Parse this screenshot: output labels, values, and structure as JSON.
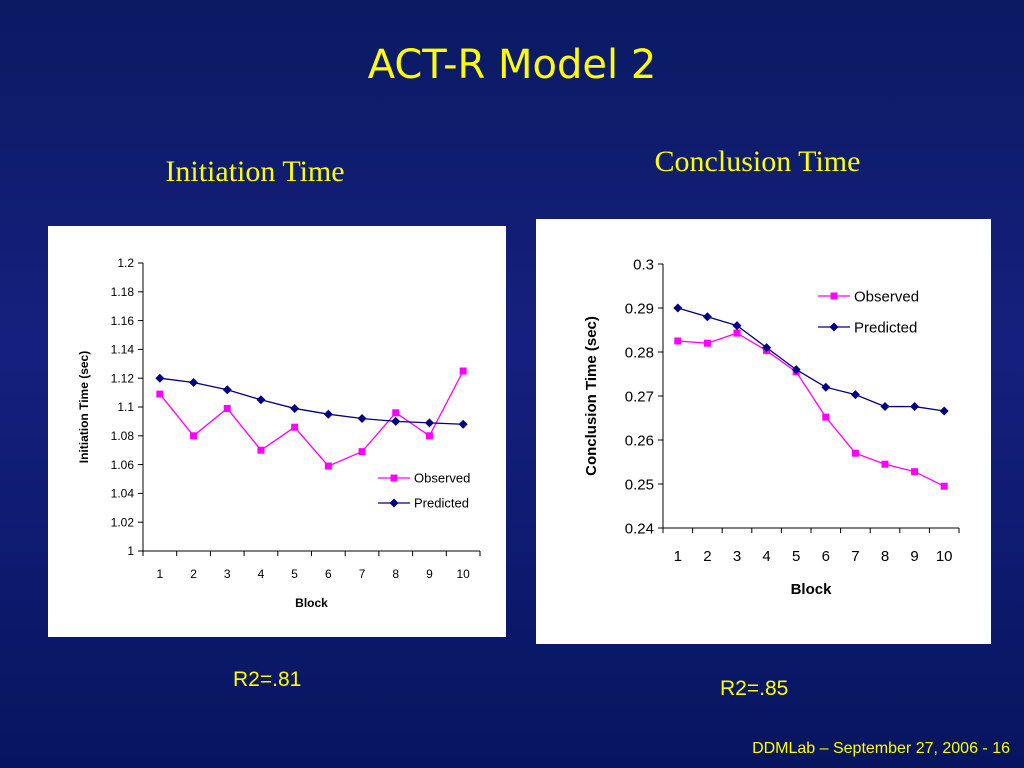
{
  "slide": {
    "title": "ACT-R Model 2",
    "footer": "DDMLab – September 27, 2006 - 16"
  },
  "colors": {
    "background": "#0c1a6e",
    "title": "#ffff00",
    "observed": "#ff00ff",
    "predicted": "#000080"
  },
  "chart_data": [
    {
      "type": "line",
      "title": "Initiation Time",
      "xlabel": "Block",
      "ylabel": "Initiation Time (sec)",
      "categories": [
        "1",
        "2",
        "3",
        "4",
        "5",
        "6",
        "7",
        "8",
        "9",
        "10"
      ],
      "ylim": [
        1,
        1.2
      ],
      "yticks": [
        "1",
        "1.02",
        "1.04",
        "1.06",
        "1.08",
        "1.1",
        "1.12",
        "1.14",
        "1.16",
        "1.18",
        "1.2"
      ],
      "ytick_values": [
        1,
        1.02,
        1.04,
        1.06,
        1.08,
        1.1,
        1.12,
        1.14,
        1.16,
        1.18,
        1.2
      ],
      "legend": "bottom-right",
      "grid": false,
      "series": [
        {
          "name": "Observed",
          "marker": "square",
          "color": "#ff00ff",
          "values": [
            1.109,
            1.08,
            1.099,
            1.07,
            1.086,
            1.059,
            1.069,
            1.096,
            1.08,
            1.125
          ]
        },
        {
          "name": "Predicted",
          "marker": "diamond",
          "color": "#000080",
          "values": [
            1.12,
            1.117,
            1.112,
            1.105,
            1.099,
            1.095,
            1.092,
            1.09,
            1.089,
            1.088
          ]
        }
      ],
      "r2_label": "R2=.81"
    },
    {
      "type": "line",
      "title": "Conclusion Time",
      "xlabel": "Block",
      "ylabel": "Conclusion Time (sec)",
      "categories": [
        "1",
        "2",
        "3",
        "4",
        "5",
        "6",
        "7",
        "8",
        "9",
        "10"
      ],
      "ylim": [
        0.24,
        0.3
      ],
      "yticks": [
        "0.24",
        "0.25",
        "0.26",
        "0.27",
        "0.28",
        "0.29",
        "0.3"
      ],
      "ytick_values": [
        0.24,
        0.25,
        0.26,
        0.27,
        0.28,
        0.29,
        0.3
      ],
      "legend": "top-right",
      "grid": false,
      "series": [
        {
          "name": "Observed",
          "marker": "square",
          "color": "#ff00ff",
          "values": [
            0.2825,
            0.282,
            0.2843,
            0.2803,
            0.2755,
            0.2652,
            0.257,
            0.2545,
            0.2528,
            0.2495
          ]
        },
        {
          "name": "Predicted",
          "marker": "diamond",
          "color": "#000080",
          "values": [
            0.29,
            0.288,
            0.286,
            0.281,
            0.276,
            0.272,
            0.2703,
            0.2676,
            0.2676,
            0.2666
          ]
        }
      ],
      "r2_label": "R2=.85"
    }
  ]
}
